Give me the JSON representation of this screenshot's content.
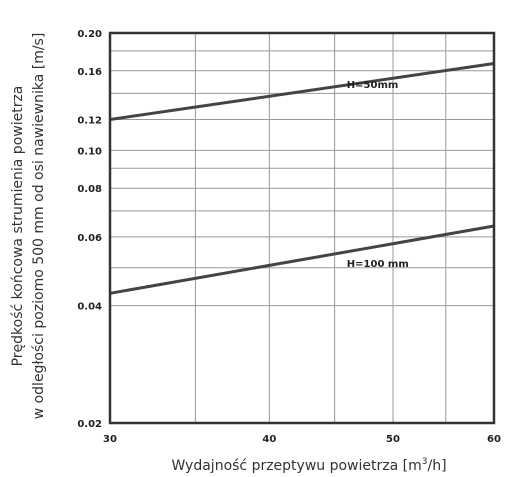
{
  "chart_data": {
    "type": "line",
    "title": "",
    "xlabel": "Wydajność przeptywu powietrza [m",
    "xlabel_sup": "3",
    "xlabel_tail": "/h]",
    "ylabel_line1": "Prędkość końcowa strumienia powietrza",
    "ylabel_line2": "w odległości poziomo 500 mm od osi nawiewnika [m/s]",
    "x_scale": "log",
    "y_scale": "log",
    "xlim": [
      30,
      60
    ],
    "ylim": [
      0.02,
      0.2
    ],
    "x_tick_labels": [
      "30",
      "40",
      "50",
      "60"
    ],
    "y_tick_labels": [
      "0.20",
      "0.16",
      "0.12",
      "0.10",
      "0.08",
      "0.06",
      "0.04",
      "0.02"
    ],
    "y_ticks": [
      0.2,
      0.16,
      0.12,
      0.1,
      0.08,
      0.06,
      0.04,
      0.02
    ],
    "x_ticks": [
      30,
      40,
      50,
      60
    ],
    "x_grid": [
      30,
      35,
      40,
      45,
      50,
      55,
      60
    ],
    "y_grid": [
      0.2,
      0.18,
      0.16,
      0.14,
      0.12,
      0.1,
      0.09,
      0.08,
      0.07,
      0.06,
      0.05,
      0.04,
      0.02
    ],
    "grid": true,
    "series": [
      {
        "name": "H=50mm",
        "x": [
          30,
          60
        ],
        "y": [
          0.12,
          0.167
        ],
        "label_at": [
          46,
          0.148
        ]
      },
      {
        "name": "H=100 mm",
        "x": [
          30,
          60
        ],
        "y": [
          0.043,
          0.064
        ],
        "label_at": [
          46,
          0.0515
        ]
      }
    ],
    "colors": {
      "line": "#444444",
      "grid": "#999999",
      "frame": "#333333"
    }
  }
}
